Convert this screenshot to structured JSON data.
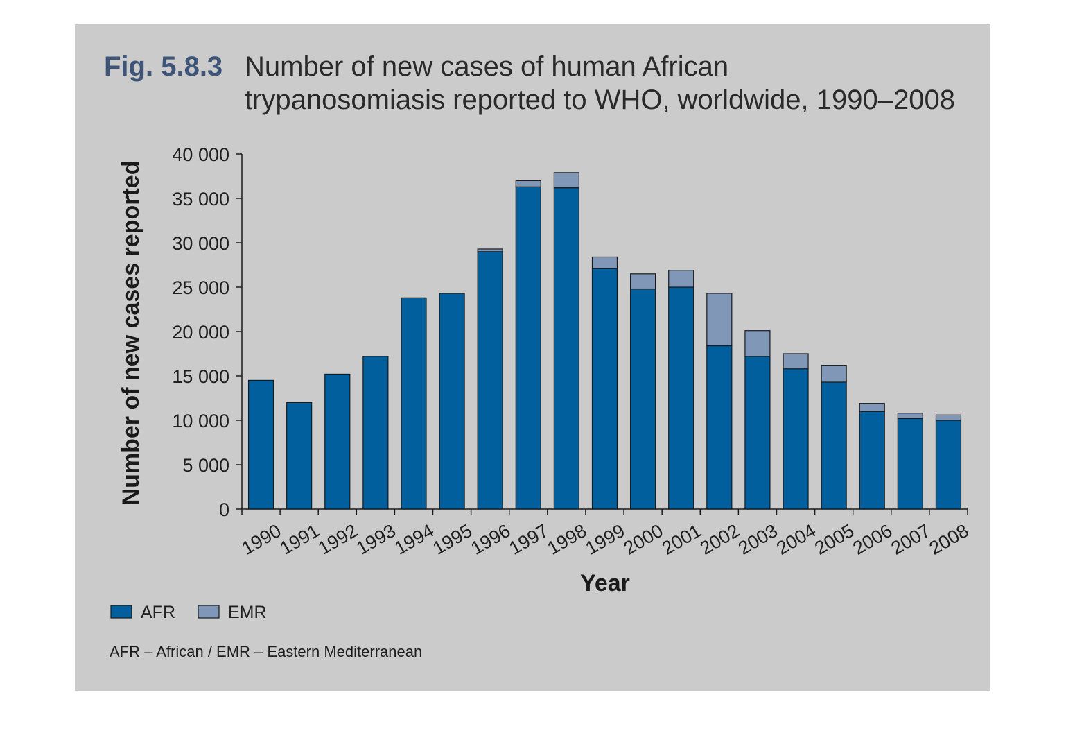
{
  "figure": {
    "label": "Fig. 5.8.3",
    "title_line1": "Number of new cases of human African",
    "title_line2": "trypanosomiasis reported to WHO, worldwide, 1990–2008",
    "footnote": "AFR – African / EMR – Eastern Mediterranean"
  },
  "colors": {
    "background": "#cbcbcb",
    "afr": "#005f9c",
    "emr": "#8097b8",
    "fig_label": "#3f5578"
  },
  "chart_data": {
    "type": "bar",
    "stacked": true,
    "categories": [
      "1990",
      "1991",
      "1992",
      "1993",
      "1994",
      "1995",
      "1996",
      "1997",
      "1998",
      "1999",
      "2000",
      "2001",
      "2002",
      "2003",
      "2004",
      "2005",
      "2006",
      "2007",
      "2008"
    ],
    "series": [
      {
        "name": "AFR",
        "values": [
          14500,
          12000,
          15200,
          17200,
          23800,
          24300,
          29000,
          36300,
          36200,
          27100,
          24800,
          25000,
          18400,
          17200,
          15800,
          14300,
          11000,
          10200,
          10000
        ]
      },
      {
        "name": "EMR",
        "values": [
          0,
          0,
          0,
          0,
          0,
          0,
          300,
          700,
          1700,
          1300,
          1700,
          1900,
          5900,
          2900,
          1700,
          1900,
          900,
          600,
          600
        ]
      }
    ],
    "xlabel": "Year",
    "ylabel": "Number of new cases reported",
    "ylim": [
      0,
      40000
    ],
    "yticks": [
      0,
      5000,
      10000,
      15000,
      20000,
      25000,
      30000,
      35000,
      40000
    ],
    "ytick_labels": [
      "0",
      "5 000",
      "10 000",
      "15 000",
      "20 000",
      "25 000",
      "30 000",
      "35 000",
      "40 000"
    ],
    "legend": [
      "AFR",
      "EMR"
    ],
    "legend_position": "bottom-left",
    "grid": false
  }
}
